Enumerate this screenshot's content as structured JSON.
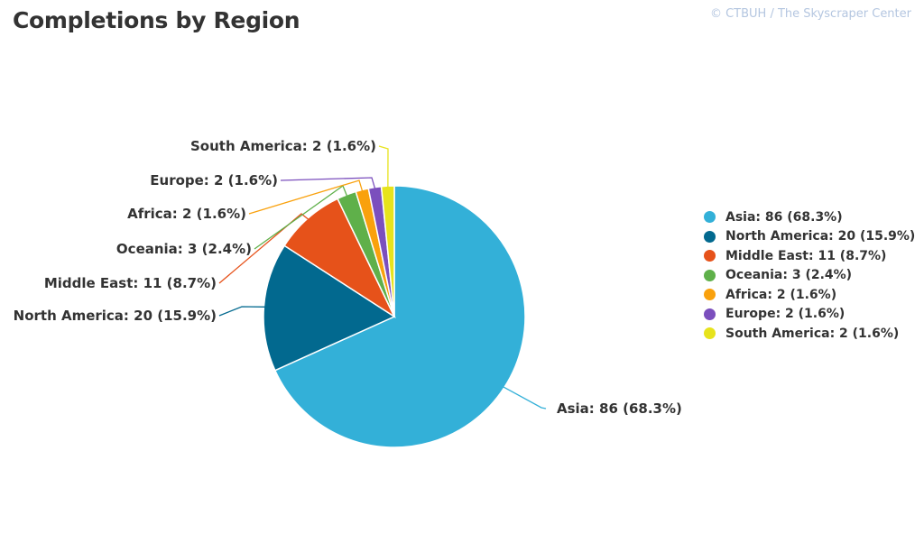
{
  "title": "Completions by Region",
  "credit": "© CTBUH / The Skyscraper Center",
  "chart_data": {
    "type": "pie",
    "title": "Completions by Region",
    "slices": [
      {
        "label": "Asia",
        "value": 86,
        "percent": "68.3%",
        "color": "#33b0d8",
        "text": "Asia: 86 (68.3%)"
      },
      {
        "label": "North America",
        "value": 20,
        "percent": "15.9%",
        "color": "#02698f",
        "text": "North America: 20 (15.9%)"
      },
      {
        "label": "Middle East",
        "value": 11,
        "percent": "8.7%",
        "color": "#e6521a",
        "text": "Middle East: 11 (8.7%)"
      },
      {
        "label": "Oceania",
        "value": 3,
        "percent": "2.4%",
        "color": "#5fb04a",
        "text": "Oceania: 3 (2.4%)"
      },
      {
        "label": "Africa",
        "value": 2,
        "percent": "1.6%",
        "color": "#f9a10d",
        "text": "Africa: 2 (1.6%)"
      },
      {
        "label": "Europe",
        "value": 2,
        "percent": "1.6%",
        "color": "#7b4fbd",
        "text": "Europe: 2 (1.6%)"
      },
      {
        "label": "South America",
        "value": 2,
        "percent": "1.6%",
        "color": "#e7e31c",
        "text": "South America: 2 (1.6%)"
      }
    ],
    "legend_position": "right"
  }
}
